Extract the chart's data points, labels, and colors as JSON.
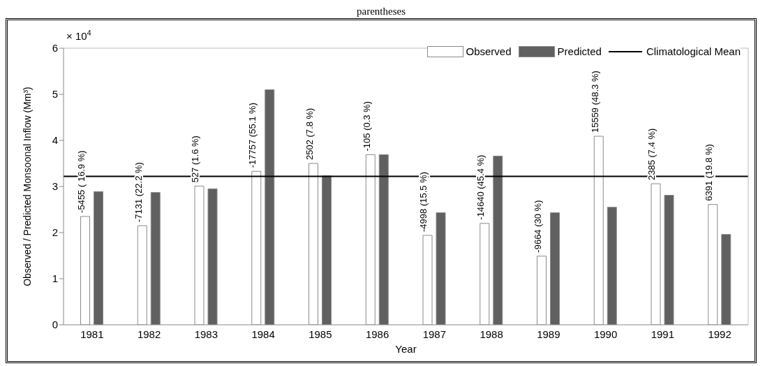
{
  "chart_data": {
    "type": "bar",
    "title": "parentheses",
    "xlabel": "Year",
    "ylabel": "Observed / Predicted Monsoonal Inflow (Mm³)",
    "categories": [
      "1981",
      "1982",
      "1983",
      "1984",
      "1985",
      "1986",
      "1987",
      "1988",
      "1989",
      "1990",
      "1991",
      "1992"
    ],
    "series": [
      {
        "name": "Observed",
        "color": "#ffffff",
        "values": [
          2.35,
          2.15,
          3.01,
          3.33,
          3.5,
          3.69,
          1.94,
          2.2,
          1.49,
          4.09,
          3.06,
          2.61
        ]
      },
      {
        "name": "Predicted",
        "color": "#606060",
        "values": [
          2.89,
          2.87,
          2.95,
          5.1,
          3.23,
          3.69,
          2.43,
          3.66,
          2.43,
          2.55,
          2.81,
          1.96
        ]
      }
    ],
    "ylim": [
      0,
      6
    ],
    "yticks": [
      0,
      1,
      2,
      3,
      4,
      5,
      6
    ],
    "ref_lines": [
      {
        "axis": "y",
        "value": 3.22,
        "label": "Climatological Mean",
        "color": "#000000"
      }
    ],
    "legend": "top right",
    "annotations": [
      "× 10$^{4}$",
      {
        "text": "-5455 ( 16.9 %)",
        "x": "1981",
        "y": 2.35
      },
      {
        "text": "-7131 (22.2 %)",
        "x": "1982",
        "y": 2.15
      },
      {
        "text": "527 (1.6 %)",
        "x": "1983",
        "y": 3.01
      },
      {
        "text": "-17757 (55.1 %)",
        "x": "1984",
        "y": 3.33
      },
      {
        "text": "2502 (7.8 %)",
        "x": "1985",
        "y": 3.5
      },
      {
        "text": "-105 (0.3 %)",
        "x": "1986",
        "y": 3.69
      },
      {
        "text": "-4998 (15.5 %)",
        "x": "1987",
        "y": 1.94
      },
      {
        "text": "-14640 (45.4 %)",
        "x": "1988",
        "y": 2.2
      },
      {
        "text": "-9664 (30 %)",
        "x": "1989",
        "y": 1.49
      },
      {
        "text": "15559 (48.3 %)",
        "x": "1990",
        "y": 4.09
      },
      {
        "text": "2385 (7.4 %)",
        "x": "1991",
        "y": 3.06
      },
      {
        "text": "6391 (19.8 %)",
        "x": "1992",
        "y": 2.61
      }
    ]
  }
}
